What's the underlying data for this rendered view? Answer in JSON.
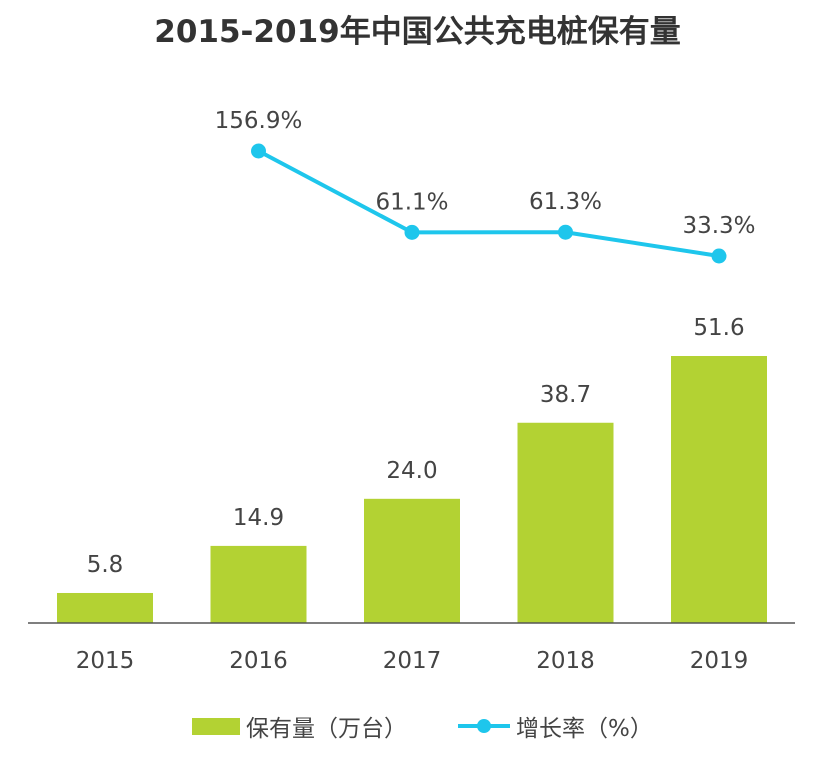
{
  "chart_data": {
    "type": "bar+line",
    "title": "2015-2019年中国公共充电桩保有量",
    "categories": [
      "2015",
      "2016",
      "2017",
      "2018",
      "2019"
    ],
    "series": [
      {
        "name": "保有量（万台）",
        "type": "bar",
        "values": [
          5.8,
          14.9,
          24.0,
          38.7,
          51.6
        ],
        "labels": [
          "5.8",
          "14.9",
          "24.0",
          "38.7",
          "51.6"
        ],
        "color": "#b3d233"
      },
      {
        "name": "增长率（%）",
        "type": "line",
        "x": [
          "2016",
          "2017",
          "2018",
          "2019"
        ],
        "values": [
          156.9,
          61.1,
          61.3,
          33.3
        ],
        "labels": [
          "156.9%",
          "61.1%",
          "61.3%",
          "33.3%"
        ],
        "color": "#1ec6ec"
      }
    ],
    "bar_ylim": [
      0,
      58
    ],
    "line_ylim": [
      0,
      160
    ],
    "legend_position": "bottom-center"
  }
}
